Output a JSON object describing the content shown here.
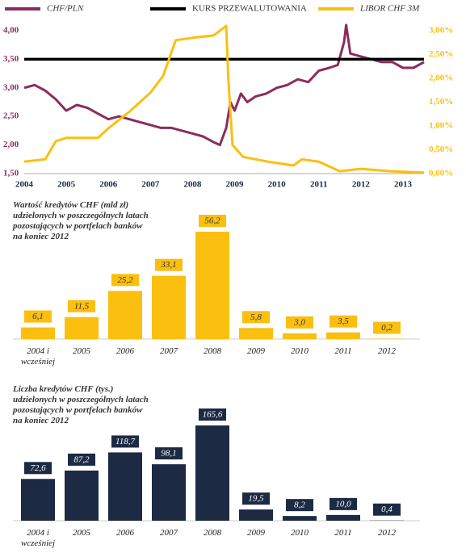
{
  "chart_data": [
    {
      "type": "line",
      "legend": "top",
      "xlim": [
        2004,
        2013.5
      ],
      "xticks": [
        2004,
        2005,
        2006,
        2007,
        2008,
        2009,
        2010,
        2011,
        2012,
        2013
      ],
      "ylim": [
        1.5,
        4
      ],
      "yticks": [
        {
          "value": 1.5,
          "label": "1,50"
        },
        {
          "value": 2,
          "label": "2,00"
        },
        {
          "value": 2.5,
          "label": "2,50"
        },
        {
          "value": 3,
          "label": "3,00"
        },
        {
          "value": 3.5,
          "label": "3,50"
        },
        {
          "value": 4,
          "label": "4,00"
        }
      ],
      "y2lim": [
        0,
        3
      ],
      "y2ticks": [
        {
          "value": 0,
          "label": "0,00%"
        },
        {
          "value": 0.5,
          "label": "0,50%"
        },
        {
          "value": 1,
          "label": "1,00%"
        },
        {
          "value": 1.5,
          "label": "1,50%"
        },
        {
          "value": 2,
          "label": "2,00%"
        },
        {
          "value": 2.5,
          "label": "2,50%"
        },
        {
          "value": 3,
          "label": "3,00%"
        }
      ],
      "series": [
        {
          "name": "CHF/PLN",
          "color": "#8b2c5e",
          "x": [
            2004,
            2004.25,
            2004.5,
            2004.75,
            2005,
            2005.25,
            2005.5,
            2005.75,
            2006,
            2006.25,
            2006.5,
            2006.75,
            2007,
            2007.25,
            2007.5,
            2007.75,
            2008,
            2008.25,
            2008.5,
            2008.65,
            2008.8,
            2008.9,
            2009,
            2009.15,
            2009.3,
            2009.5,
            2009.75,
            2010,
            2010.25,
            2010.5,
            2010.75,
            2011,
            2011.25,
            2011.45,
            2011.6,
            2011.65,
            2011.75,
            2012,
            2012.25,
            2012.5,
            2012.75,
            2013,
            2013.25,
            2013.5
          ],
          "values": [
            3.0,
            3.05,
            2.95,
            2.8,
            2.6,
            2.7,
            2.65,
            2.55,
            2.45,
            2.5,
            2.45,
            2.4,
            2.35,
            2.3,
            2.3,
            2.25,
            2.2,
            2.15,
            2.05,
            2.0,
            2.3,
            2.75,
            2.6,
            2.9,
            2.75,
            2.85,
            2.9,
            3.0,
            3.05,
            3.15,
            3.1,
            3.3,
            3.35,
            3.4,
            3.8,
            4.1,
            3.6,
            3.55,
            3.5,
            3.45,
            3.45,
            3.35,
            3.35,
            3.45
          ]
        },
        {
          "name": "KURS PRZEWALUTOWANIA",
          "color": "#000000",
          "x": [
            2004,
            2013.5
          ],
          "values": [
            3.5,
            3.5
          ]
        },
        {
          "name": "LIBOR CHF 3M",
          "color": "#fbbf10",
          "axis": "y2",
          "x": [
            2004,
            2004.5,
            2004.75,
            2005,
            2005.75,
            2006,
            2006.5,
            2007,
            2007.3,
            2007.6,
            2008,
            2008.5,
            2008.8,
            2008.85,
            2008.95,
            2009.2,
            2009.8,
            2010.4,
            2010.6,
            2011,
            2011.5,
            2012,
            2012.7,
            2013.5
          ],
          "values": [
            0.25,
            0.3,
            0.68,
            0.75,
            0.75,
            0.95,
            1.3,
            1.7,
            2.05,
            2.8,
            2.85,
            2.9,
            3.1,
            2.0,
            0.6,
            0.35,
            0.25,
            0.17,
            0.3,
            0.25,
            0.05,
            0.1,
            0.05,
            0.02
          ]
        }
      ]
    },
    {
      "type": "bar",
      "title": "Wartość kredytów CHF (mld zł)\nudzielonych w poszczególnych latach\npozostających w portfelach banków\nna koniec 2012",
      "categories": [
        "2004 i wcześniej",
        "2005",
        "2006",
        "2007",
        "2008",
        "2009",
        "2010",
        "2011",
        "2012"
      ],
      "values": [
        6.1,
        11.5,
        25.2,
        33.1,
        56.2,
        5.8,
        3.0,
        3.5,
        0.2
      ],
      "value_labels": [
        "6,1",
        "11,5",
        "25,2",
        "33,1",
        "56,2",
        "5,8",
        "3,0",
        "3,5",
        "0,2"
      ],
      "color": "#fbbf10"
    },
    {
      "type": "bar",
      "title": "Liczba kredytów CHF (tys.)\nudzielonych w poszczególnych latach\npozostających w portfelach banków\nna koniec 2012",
      "categories": [
        "2004 i wcześniej",
        "2005",
        "2006",
        "2007",
        "2008",
        "2009",
        "2010",
        "2011",
        "2012"
      ],
      "values": [
        72.6,
        87.2,
        118.7,
        98.1,
        165.6,
        19.5,
        8.2,
        10.0,
        0.4
      ],
      "value_labels": [
        "72,6",
        "87,2",
        "118,7",
        "98,1",
        "165,6",
        "19,5",
        "8,2",
        "10,0",
        "0,4"
      ],
      "color": "#1c2a44"
    }
  ]
}
